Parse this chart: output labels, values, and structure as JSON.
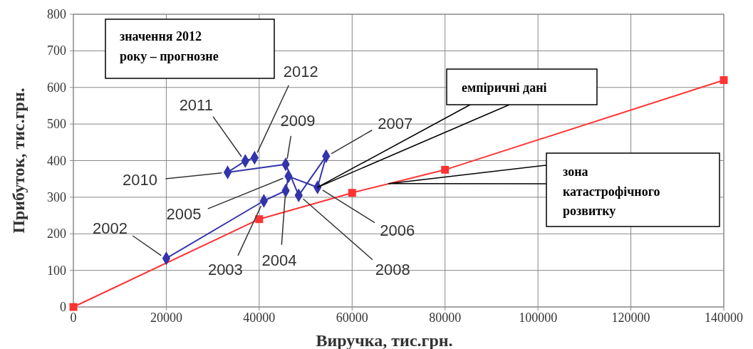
{
  "chart_data": {
    "type": "line",
    "xlabel": "Виручка, тис.грн.",
    "ylabel": "Прибуток, тис.грн.",
    "xlim": [
      0,
      140000
    ],
    "xticks": [
      0,
      20000,
      40000,
      60000,
      80000,
      100000,
      120000,
      140000
    ],
    "ylim": [
      0,
      800
    ],
    "yticks": [
      0,
      100,
      200,
      300,
      400,
      500,
      600,
      700,
      800
    ],
    "grid": true,
    "series": [
      {
        "color": "#3333aa",
        "marker": "diamond",
        "x": [
          20000,
          41000,
          45700,
          46300,
          52550,
          54400,
          48500,
          45700,
          33200,
          37000,
          39000
        ],
        "values": [
          133,
          290,
          318,
          357,
          327,
          412,
          305,
          390,
          368,
          399,
          408
        ]
      },
      {
        "color": "#ff3333",
        "marker": "square",
        "x": [
          0,
          40000,
          60000,
          80000,
          140000
        ],
        "values": [
          0,
          240,
          312,
          375,
          620
        ]
      }
    ],
    "annotations": [
      {
        "text": "2002",
        "x": 20000,
        "y": 133
      },
      {
        "text": "2003",
        "x": 41000,
        "y": 290
      },
      {
        "text": "2004",
        "x": 45700,
        "y": 318
      },
      {
        "text": "2005",
        "x": 46300,
        "y": 357
      },
      {
        "text": "2006",
        "x": 52550,
        "y": 327
      },
      {
        "text": "2007",
        "x": 54400,
        "y": 412
      },
      {
        "text": "2008",
        "x": 48500,
        "y": 305
      },
      {
        "text": "2009",
        "x": 45700,
        "y": 390
      },
      {
        "text": "2010",
        "x": 33200,
        "y": 368
      },
      {
        "text": "2011",
        "x": 37000,
        "y": 399
      },
      {
        "text": "2012",
        "x": 39000,
        "y": 408
      },
      "значення 2012\nроку – прогнозне",
      {
        "text": "емпіричні дані",
        "x": 52550,
        "y": 327
      },
      {
        "text": "зона\nкатастрофічного\nрозвитку",
        "x": 67800,
        "y": 337
      }
    ]
  }
}
